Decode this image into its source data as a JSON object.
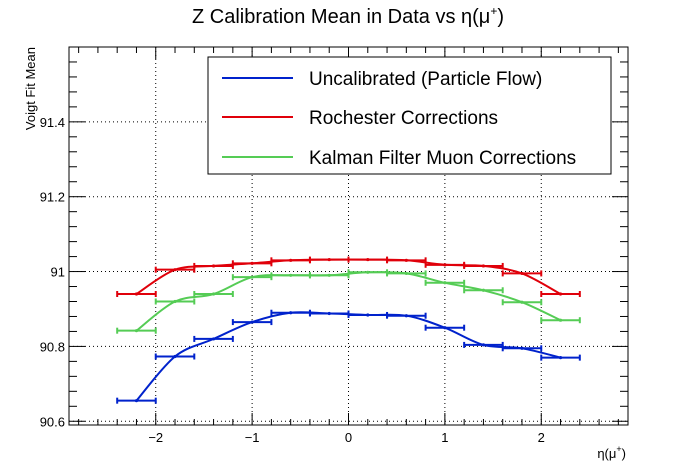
{
  "chart_data": {
    "type": "line",
    "title": "Z Calibration Mean in Data vs η(μ",
    "title_sup": "+",
    "title_end": ")",
    "xlabel": "η(μ",
    "xlabel_sup": "+",
    "xlabel_end": ")",
    "ylabel": "Voigt Fit Mean",
    "xlim": [
      -2.9,
      2.9
    ],
    "ylim": [
      90.59,
      91.6
    ],
    "xticks": [
      -2,
      -1,
      0,
      1,
      2
    ],
    "xtick_labels": [
      "−2",
      "−1",
      "0",
      "1",
      "2"
    ],
    "yticks": [
      90.6,
      90.8,
      91,
      91.2,
      91.4
    ],
    "ytick_labels": [
      "90.6",
      "90.8",
      "91",
      "91.2",
      "91.4"
    ],
    "grid": true,
    "legend_position": "top-right",
    "x": [
      -2.2,
      -1.8,
      -1.4,
      -1.0,
      -0.6,
      -0.2,
      0.2,
      0.6,
      1.0,
      1.4,
      1.8,
      2.2
    ],
    "xerr": 0.2,
    "series": [
      {
        "name": "Uncalibrated (Particle Flow)",
        "color": "#0022cc",
        "values": [
          90.655,
          90.773,
          90.82,
          90.865,
          90.89,
          90.888,
          90.884,
          90.882,
          90.85,
          90.804,
          90.795,
          90.77
        ]
      },
      {
        "name": "Rochester Corrections",
        "color": "#e0000a",
        "values": [
          90.94,
          91.005,
          91.015,
          91.022,
          91.03,
          91.032,
          91.032,
          91.03,
          91.018,
          91.015,
          90.995,
          90.94
        ]
      },
      {
        "name": "Kalman Filter Muon Corrections",
        "color": "#55cc55",
        "values": [
          90.842,
          90.92,
          90.94,
          90.985,
          90.99,
          90.99,
          90.998,
          90.995,
          90.97,
          90.95,
          90.918,
          90.87
        ]
      }
    ]
  }
}
